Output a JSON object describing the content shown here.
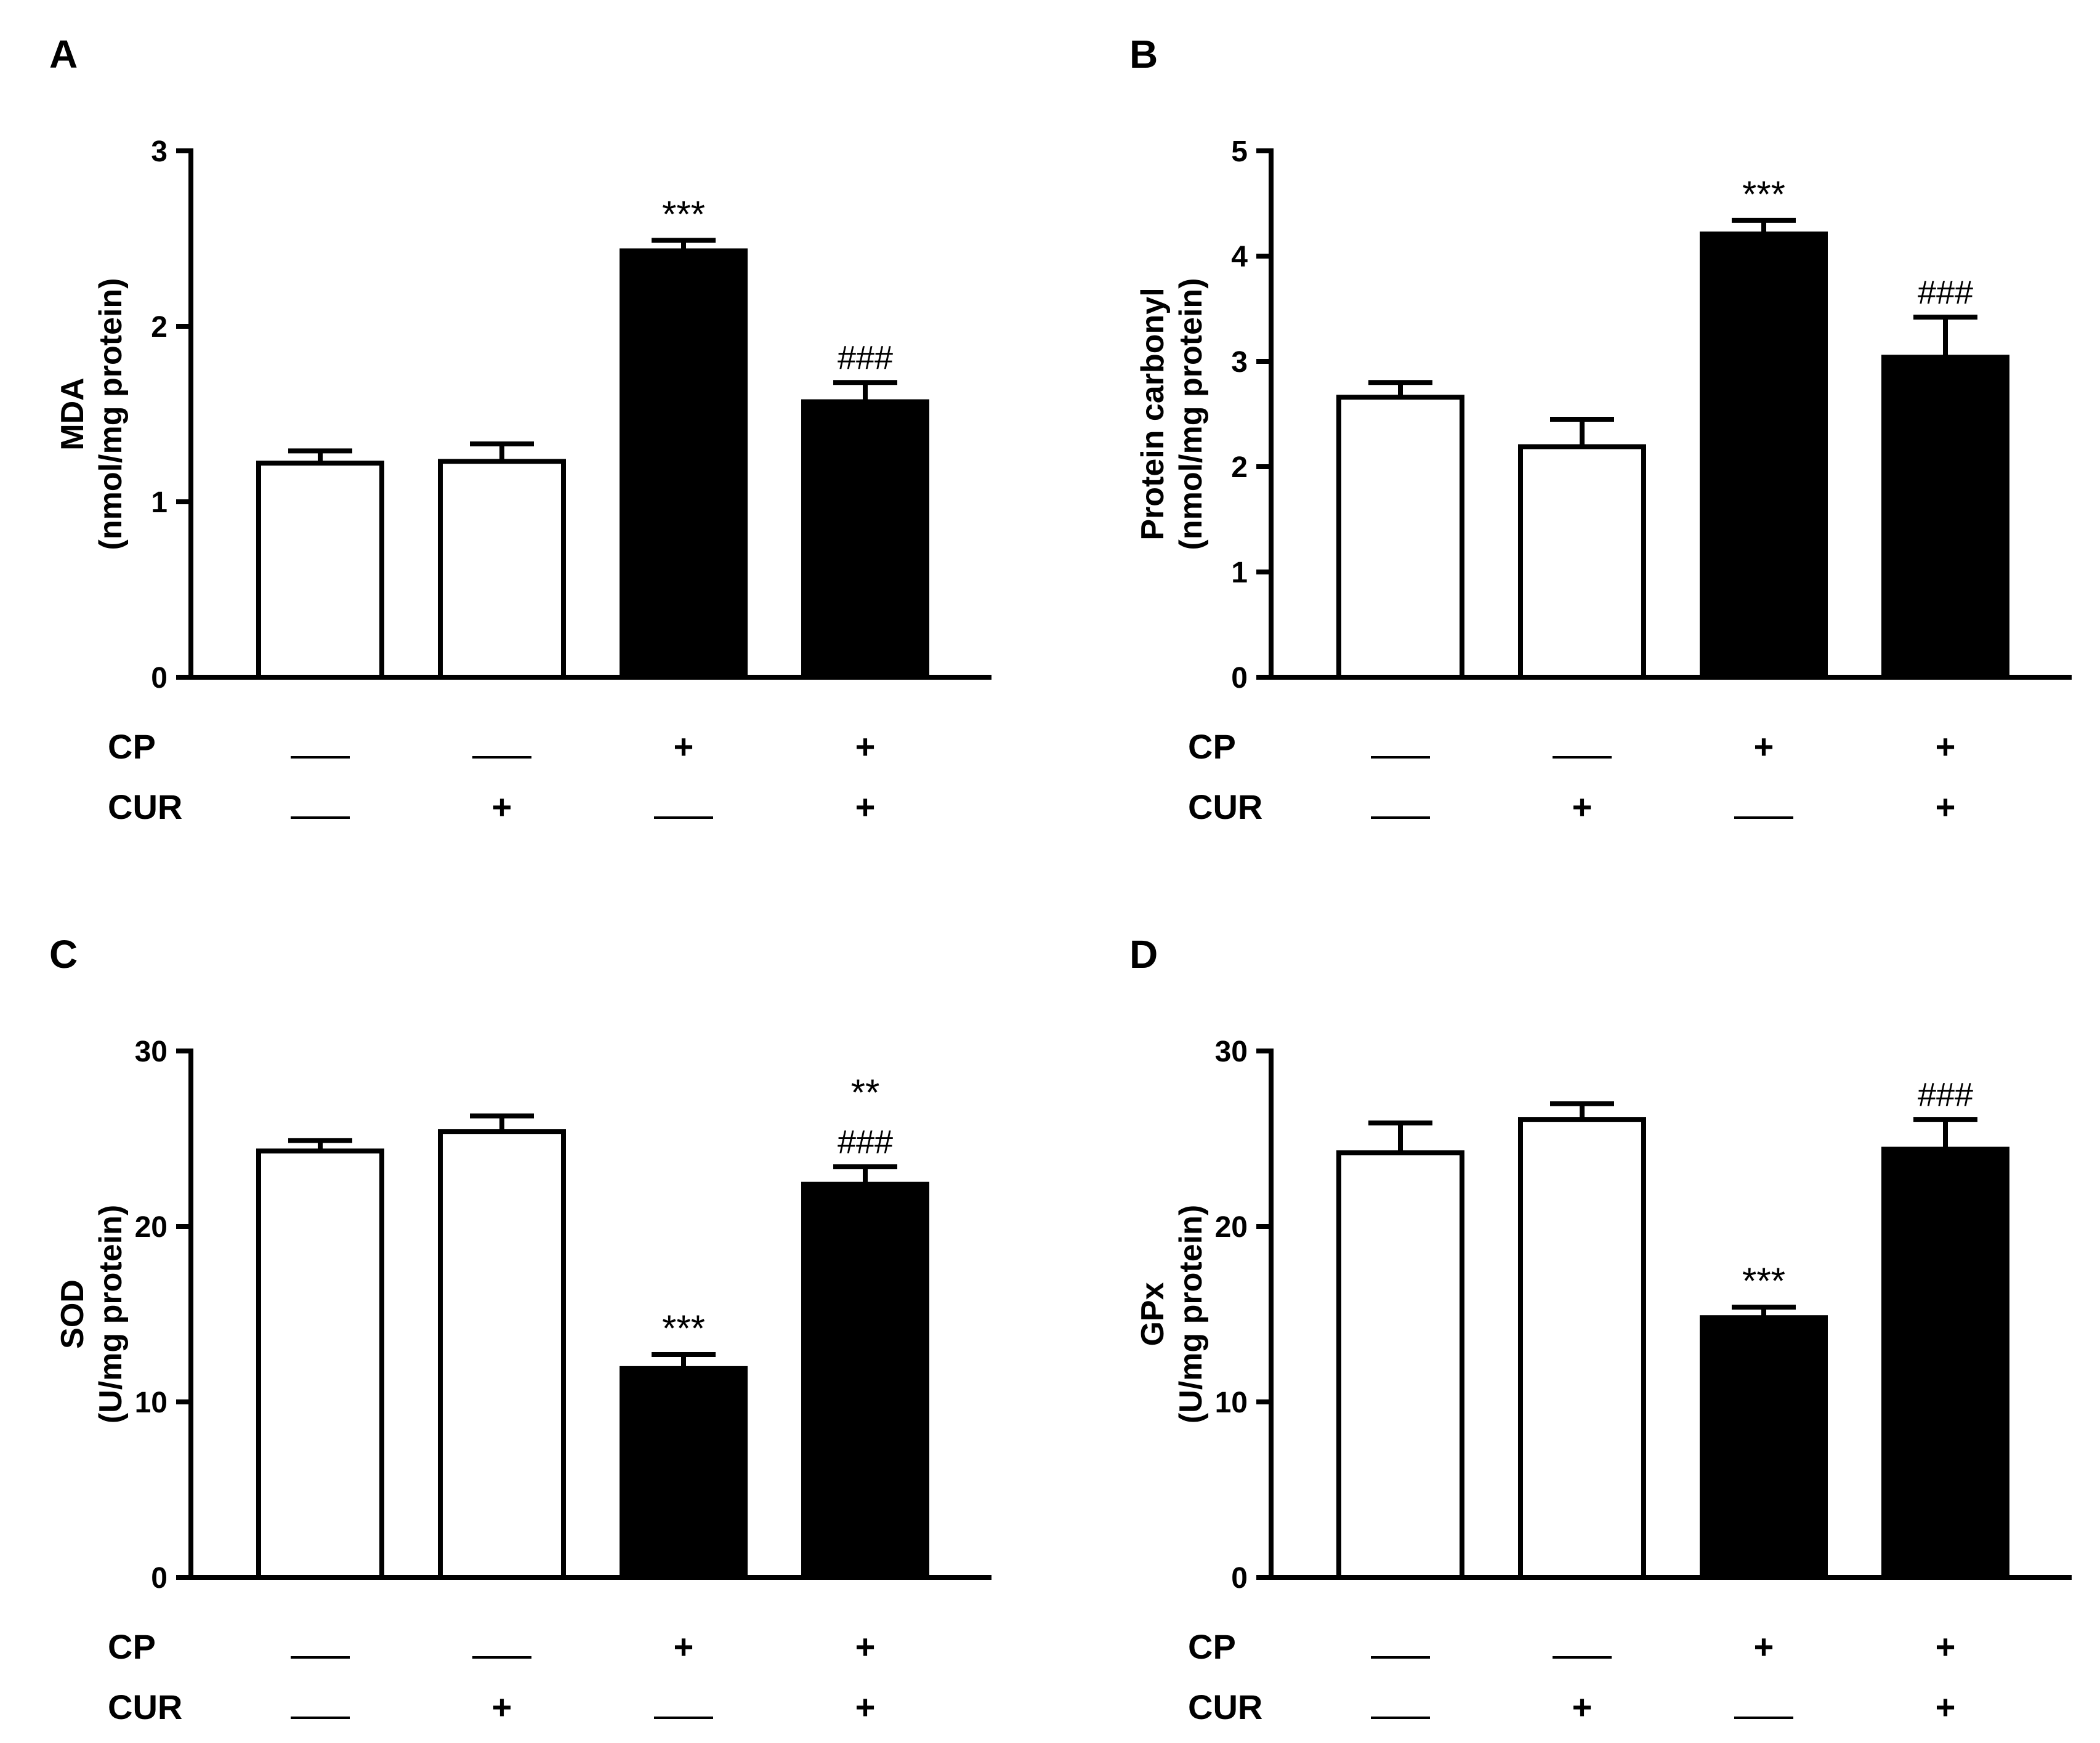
{
  "figure": {
    "row_labels": {
      "cp": "CP",
      "cur": "CUR"
    },
    "conditions": {
      "cp": [
        "—",
        "—",
        "+",
        "+"
      ],
      "cur": [
        "—",
        "+",
        "—",
        "+"
      ]
    }
  },
  "chart_data": [
    {
      "panel": "A",
      "type": "bar",
      "ylabel": [
        "MDA",
        "(nmol/mg protein)"
      ],
      "ylim": [
        0,
        3
      ],
      "yticks": [
        0,
        1,
        2,
        3
      ],
      "categories": [
        "CP—/CUR—",
        "CP—/CUR+",
        "CP+/CUR—",
        "CP+/CUR+"
      ],
      "values": [
        1.22,
        1.23,
        2.43,
        1.57
      ],
      "errors": [
        0.07,
        0.1,
        0.06,
        0.11
      ],
      "fills": [
        "white",
        "white",
        "black",
        "black"
      ],
      "annotations": [
        [],
        [],
        [
          "***"
        ],
        [
          "###"
        ]
      ]
    },
    {
      "panel": "B",
      "type": "bar",
      "ylabel": [
        "Protein carbonyl",
        "(nmol/mg protein)"
      ],
      "ylim": [
        0,
        5
      ],
      "yticks": [
        0,
        1,
        2,
        3,
        4,
        5
      ],
      "categories": [
        "CP—/CUR—",
        "CP—/CUR+",
        "CP+/CUR—",
        "CP+/CUR+"
      ],
      "values": [
        2.66,
        2.19,
        4.21,
        3.04
      ],
      "errors": [
        0.14,
        0.26,
        0.13,
        0.38
      ],
      "fills": [
        "white",
        "white",
        "black",
        "black"
      ],
      "annotations": [
        [],
        [],
        [
          "***"
        ],
        [
          "###"
        ]
      ]
    },
    {
      "panel": "C",
      "type": "bar",
      "ylabel": [
        "SOD",
        "(U/mg protein)"
      ],
      "ylim": [
        0,
        30
      ],
      "yticks": [
        0,
        10,
        20,
        30
      ],
      "categories": [
        "CP—/CUR—",
        "CP—/CUR+",
        "CP+/CUR—",
        "CP+/CUR+"
      ],
      "values": [
        24.3,
        25.4,
        11.9,
        22.4
      ],
      "errors": [
        0.6,
        0.9,
        0.8,
        1.0
      ],
      "fills": [
        "white",
        "white",
        "black",
        "black"
      ],
      "annotations": [
        [],
        [],
        [
          "***"
        ],
        [
          "###",
          "**"
        ]
      ]
    },
    {
      "panel": "D",
      "type": "bar",
      "ylabel": [
        "GPx",
        "(U/mg protein)"
      ],
      "ylim": [
        0,
        30
      ],
      "yticks": [
        0,
        10,
        20,
        30
      ],
      "categories": [
        "CP—/CUR—",
        "CP—/CUR+",
        "CP+/CUR—",
        "CP+/CUR+"
      ],
      "values": [
        24.2,
        26.1,
        14.8,
        24.4
      ],
      "errors": [
        1.7,
        0.9,
        0.6,
        1.7
      ],
      "fills": [
        "white",
        "white",
        "black",
        "black"
      ],
      "annotations": [
        [],
        [],
        [
          "***"
        ],
        [
          "###"
        ]
      ]
    }
  ]
}
